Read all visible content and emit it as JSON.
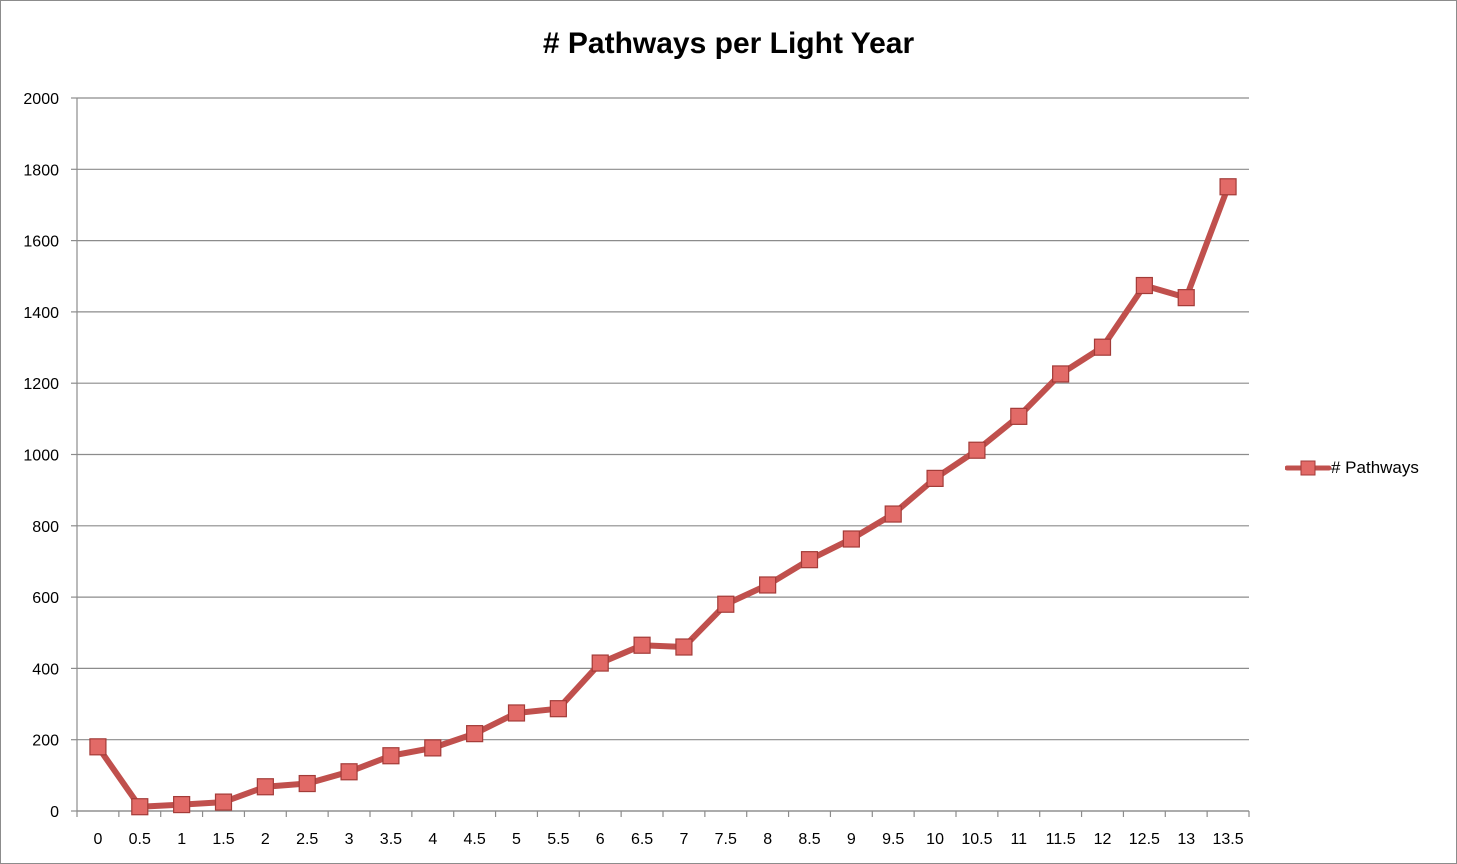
{
  "chart_data": {
    "type": "line",
    "title": "# Pathways per Light Year",
    "xlabel": "",
    "ylabel": "",
    "categories": [
      "0",
      "0.5",
      "1",
      "1.5",
      "2",
      "2.5",
      "3",
      "3.5",
      "4",
      "4.5",
      "5",
      "5.5",
      "6",
      "6.5",
      "7",
      "7.5",
      "8",
      "8.5",
      "9",
      "9.5",
      "10",
      "10.5",
      "11",
      "11.5",
      "12",
      "12.5",
      "13",
      "13.5"
    ],
    "series": [
      {
        "name": "# Pathways",
        "color": "#c0504d",
        "marker_color": "#e26a67",
        "values": [
          180,
          12,
          18,
          25,
          68,
          77,
          110,
          155,
          177,
          217,
          275,
          287,
          415,
          465,
          460,
          580,
          634,
          705,
          763,
          833,
          933,
          1012,
          1107,
          1226,
          1301,
          1474,
          1440,
          1751
        ]
      }
    ],
    "ylim": [
      0,
      2000
    ],
    "yticks": [
      0,
      200,
      400,
      600,
      800,
      1000,
      1200,
      1400,
      1600,
      1800,
      2000
    ],
    "grid": true,
    "legend_position": "right"
  }
}
